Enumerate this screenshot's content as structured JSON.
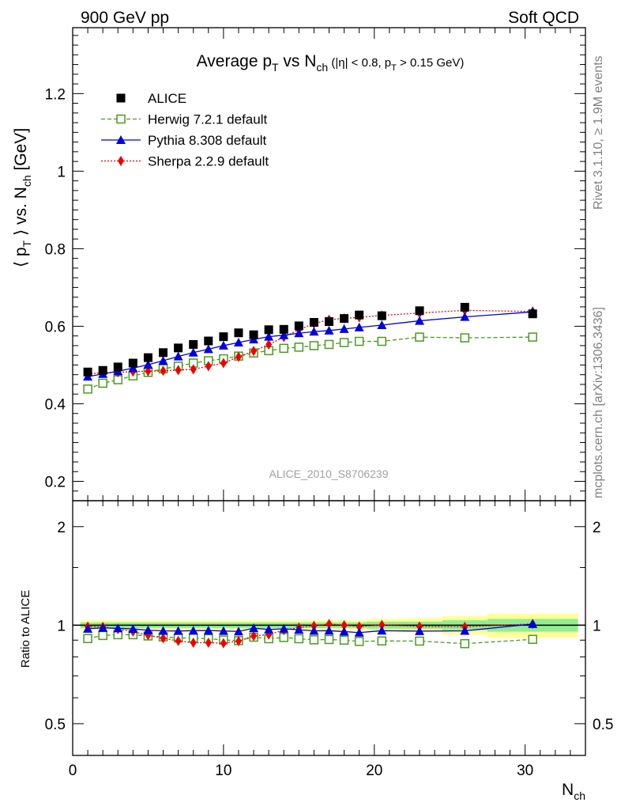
{
  "header": {
    "left": "900 GeV pp",
    "right": "Soft QCD"
  },
  "side_labels": {
    "rivet": "Rivet 3.1.10, ≥ 1.9M events",
    "mcplots": "mcplots.cern.ch [arXiv:1306.3436]"
  },
  "chart_data": {
    "type": "scatter",
    "title_parts": {
      "t1": "Average p",
      "t1_sub": "T",
      "t2": " vs N",
      "t2_sub": "ch",
      "t3": " (|η| < 0.8, p",
      "t3_sub": "T",
      "t4": " > 0.15 GeV)"
    },
    "ylabel_parts": {
      "a": "⟨ p",
      "a_sub": "T",
      "b": " ⟩ vs. N",
      "b_sub": "ch",
      "c": " [GeV]"
    },
    "xlabel_parts": {
      "a": "N",
      "a_sub": "ch"
    },
    "watermark": "ALICE_2010_S8706239",
    "ratio_ylabel": "Ratio to ALICE",
    "xlim": [
      0,
      34
    ],
    "ylim_main": [
      0.15,
      1.37
    ],
    "ylim_ratio": [
      0.4,
      2.4
    ],
    "x_ticks": [
      0,
      10,
      20,
      30
    ],
    "y_ticks_main": [
      0.2,
      0.4,
      0.6,
      0.8,
      1,
      1.2
    ],
    "y_ticks_ratio": [
      0.5,
      1,
      2
    ],
    "series": [
      {
        "name": "ALICE",
        "color": "#000000",
        "marker": "square-filled",
        "line": "none",
        "x": [
          1,
          2,
          3,
          4,
          5,
          6,
          7,
          8,
          9,
          10,
          11,
          12,
          13,
          14,
          15,
          16,
          17,
          18,
          19,
          20.5,
          23,
          26,
          30.5
        ],
        "y": [
          0.482,
          0.486,
          0.495,
          0.505,
          0.519,
          0.532,
          0.544,
          0.553,
          0.562,
          0.573,
          0.583,
          0.578,
          0.591,
          0.592,
          0.601,
          0.61,
          0.612,
          0.62,
          0.629,
          0.627,
          0.64,
          0.649,
          0.632
        ]
      },
      {
        "name": "Herwig 7.2.1 default",
        "color": "#4a9a1e",
        "marker": "square-open",
        "line": "dashed",
        "x": [
          1,
          2,
          3,
          4,
          5,
          6,
          7,
          8,
          9,
          10,
          11,
          12,
          13,
          14,
          15,
          16,
          17,
          18,
          19,
          20.5,
          23,
          26,
          30.5
        ],
        "y": [
          0.438,
          0.453,
          0.462,
          0.472,
          0.481,
          0.49,
          0.497,
          0.505,
          0.511,
          0.516,
          0.523,
          0.531,
          0.537,
          0.543,
          0.546,
          0.55,
          0.553,
          0.558,
          0.561,
          0.561,
          0.572,
          0.57,
          0.572
        ],
        "ratio": [
          0.91,
          0.93,
          0.935,
          0.935,
          0.927,
          0.921,
          0.914,
          0.913,
          0.909,
          0.901,
          0.897,
          0.919,
          0.909,
          0.917,
          0.909,
          0.902,
          0.904,
          0.9,
          0.892,
          0.895,
          0.894,
          0.878,
          0.905
        ]
      },
      {
        "name": "Pythia 8.308 default",
        "color": "#0000dd",
        "marker": "triangle-filled",
        "line": "solid",
        "x": [
          1,
          2,
          3,
          4,
          5,
          6,
          7,
          8,
          9,
          10,
          11,
          12,
          13,
          14,
          15,
          16,
          17,
          18,
          19,
          20.5,
          23,
          26,
          30.5
        ],
        "y": [
          0.47,
          0.477,
          0.484,
          0.492,
          0.501,
          0.511,
          0.522,
          0.532,
          0.541,
          0.55,
          0.558,
          0.566,
          0.573,
          0.577,
          0.582,
          0.586,
          0.589,
          0.593,
          0.597,
          0.603,
          0.614,
          0.624,
          0.637
        ],
        "ratio": [
          0.975,
          0.981,
          0.978,
          0.974,
          0.965,
          0.961,
          0.96,
          0.962,
          0.963,
          0.96,
          0.957,
          0.979,
          0.97,
          0.975,
          0.968,
          0.961,
          0.962,
          0.956,
          0.949,
          0.962,
          0.959,
          0.961,
          1.008
        ]
      },
      {
        "name": "Sherpa 2.2.9 default",
        "color": "#ee0000",
        "marker": "diamond-filled",
        "line": "dotted",
        "x": [
          1,
          2,
          3,
          4,
          5,
          6,
          7,
          8,
          9,
          10,
          11,
          12,
          13,
          14,
          15,
          16,
          17,
          18,
          19,
          20.5,
          23,
          26,
          30.5
        ],
        "y": [
          0.477,
          0.48,
          0.481,
          0.483,
          0.484,
          0.485,
          0.487,
          0.489,
          0.497,
          0.505,
          0.521,
          0.536,
          0.553,
          0.572,
          0.591,
          0.607,
          0.617,
          0.62,
          0.623,
          0.628,
          0.634,
          0.641,
          0.638
        ],
        "ratio": [
          0.99,
          0.988,
          0.972,
          0.956,
          0.932,
          0.912,
          0.895,
          0.884,
          0.884,
          0.881,
          0.894,
          0.927,
          0.936,
          0.966,
          0.983,
          0.995,
          1.008,
          1.0,
          0.99,
          1.002,
          0.991,
          0.988,
          1.009
        ]
      }
    ],
    "ratio_bands": {
      "edges": [
        0.5,
        1.5,
        2.5,
        3.5,
        4.5,
        5.5,
        6.5,
        7.5,
        8.5,
        9.5,
        10.5,
        11.5,
        12.5,
        13.5,
        14.5,
        15.5,
        16.5,
        17.5,
        18.5,
        19.5,
        21.5,
        24.5,
        27.5,
        33.5
      ],
      "green_half": [
        0.02,
        0.02,
        0.02,
        0.02,
        0.02,
        0.02,
        0.02,
        0.02,
        0.02,
        0.02,
        0.02,
        0.02,
        0.02,
        0.02,
        0.02,
        0.02,
        0.02,
        0.02,
        0.02,
        0.025,
        0.025,
        0.035,
        0.045
      ],
      "yellow_half": [
        0.035,
        0.035,
        0.035,
        0.035,
        0.035,
        0.035,
        0.035,
        0.035,
        0.035,
        0.035,
        0.035,
        0.035,
        0.035,
        0.035,
        0.035,
        0.035,
        0.035,
        0.035,
        0.035,
        0.045,
        0.05,
        0.065,
        0.085
      ],
      "green_color": "#90ee90",
      "yellow_color": "#ffff99"
    },
    "legend_position": "top-left"
  }
}
